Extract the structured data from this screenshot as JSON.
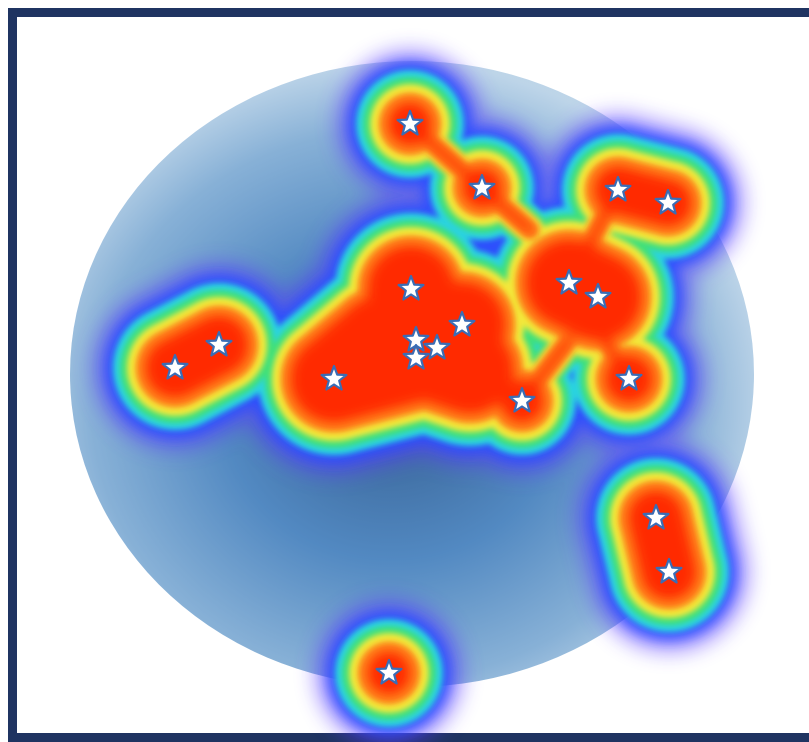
{
  "image": {
    "subject": "heatmap",
    "colors": {
      "frame": "#1f3461",
      "background": "#ffffff",
      "disc_dark": "#1f4e86",
      "disc_light": "#9dc2e0",
      "marker_fill": "#ffffff",
      "marker_stroke": "#3a6db5",
      "heat_low": "#2a3cff",
      "heat_mid": "#34e07a",
      "heat_high": "#ff1a00"
    },
    "marker_icon": "star-icon",
    "marker_count": 21
  }
}
